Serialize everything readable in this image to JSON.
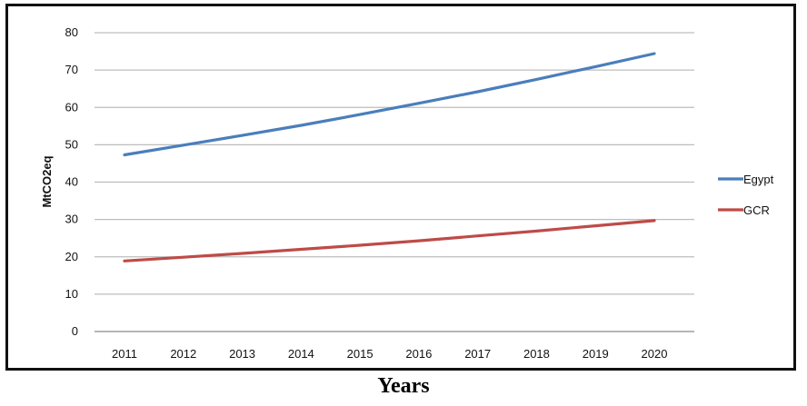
{
  "chart_data": {
    "type": "line",
    "x": [
      2011,
      2012,
      2013,
      2014,
      2015,
      2016,
      2017,
      2018,
      2019,
      2020
    ],
    "series": [
      {
        "name": "Egypt",
        "color": "#4a7ebb",
        "values": [
          47.3,
          49.9,
          52.5,
          55.2,
          58.1,
          61.1,
          64.2,
          67.5,
          70.9,
          74.4
        ]
      },
      {
        "name": "GCR",
        "color": "#be4b48",
        "values": [
          18.9,
          19.9,
          20.9,
          22.0,
          23.1,
          24.3,
          25.6,
          26.9,
          28.3,
          29.7
        ]
      }
    ],
    "ylabel": "MtCO2eq",
    "xlabel": "Years",
    "ylim": [
      0,
      80
    ],
    "yticks": [
      0,
      10,
      20,
      30,
      40,
      50,
      60,
      70,
      80
    ],
    "grid": true,
    "legend_position": "right"
  }
}
